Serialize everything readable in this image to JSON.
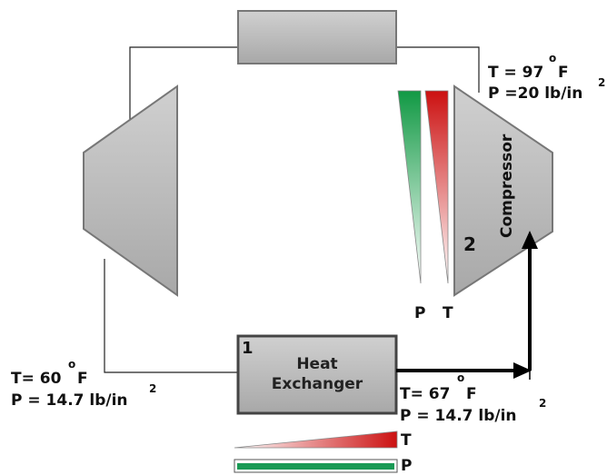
{
  "heat_exchanger": {
    "number": "1",
    "label_line1": "Heat",
    "label_line2": "Exchanger"
  },
  "compressor": {
    "number": "2",
    "label": "Compressor"
  },
  "states": [
    {
      "temperature": "T= 60",
      "degree": "o",
      "unit": "F",
      "pressure": "P = 14.7 lb/in",
      "exponent": "2"
    },
    {
      "temperature": "T= 67",
      "degree": "o",
      "unit": "F",
      "pressure": "P = 14.7 lb/in",
      "exponent": "2"
    },
    {
      "temperature": "T = 97",
      "degree": "o",
      "unit": "F",
      "pressure": "P =20 lb/in",
      "exponent": "2"
    }
  ],
  "gradient_labels": {
    "vertical_p": "P",
    "vertical_t": "T",
    "horizontal_t": "T",
    "horizontal_p": "P"
  }
}
